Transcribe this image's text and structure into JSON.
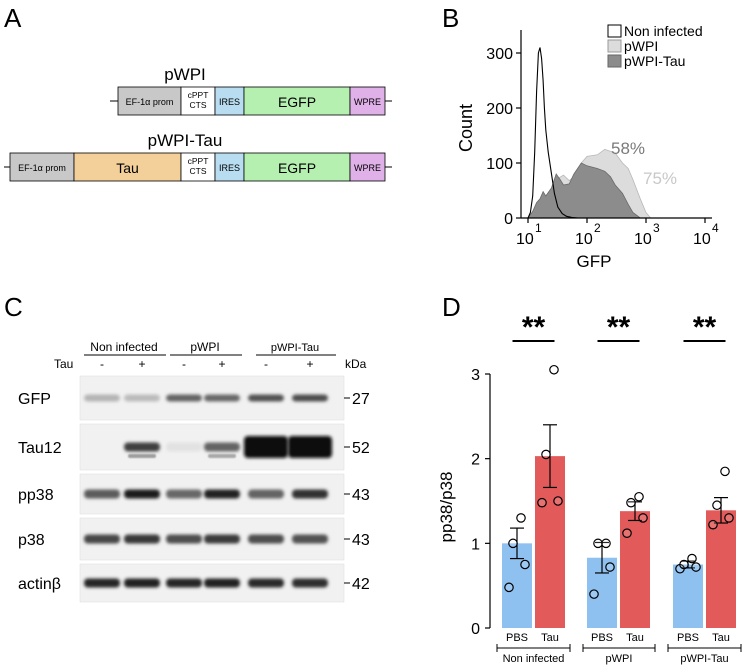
{
  "panels": {
    "A": "A",
    "B": "B",
    "C": "C",
    "D": "D"
  },
  "panel_a": {
    "constructs": [
      {
        "name": "pWPI",
        "elements": [
          {
            "label": "EF-1α prom",
            "color": "#c8c8c8"
          },
          {
            "label": "cPPT CTS",
            "color": "#ffffff"
          },
          {
            "label": "IRES",
            "color": "#b8dcf0"
          },
          {
            "label": "EGFP",
            "color": "#b5f0b0"
          },
          {
            "label": "WPRE",
            "color": "#e0b0e8"
          }
        ]
      },
      {
        "name": "pWPI-Tau",
        "elements": [
          {
            "label": "EF-1α prom",
            "color": "#c8c8c8"
          },
          {
            "label": "Tau",
            "color": "#f3cf9a"
          },
          {
            "label": "cPPT CTS",
            "color": "#ffffff"
          },
          {
            "label": "IRES",
            "color": "#b8dcf0"
          },
          {
            "label": "EGFP",
            "color": "#b5f0b0"
          },
          {
            "label": "WPRE",
            "color": "#e0b0e8"
          }
        ]
      }
    ],
    "cppt_line1": "cPPT",
    "cppt_line2": "CTS"
  },
  "chart_data": [
    {
      "type": "area",
      "panel": "B",
      "ylabel": "Count",
      "xlabel": "GFP",
      "x_scale": "log",
      "xlim": [
        10,
        10000
      ],
      "ylim": [
        0,
        320
      ],
      "x_tick_bases": [
        "10",
        "10",
        "10",
        "10"
      ],
      "x_tick_exponents": [
        "1",
        "2",
        "3",
        "4"
      ],
      "y_ticks": [
        "0",
        "100",
        "200",
        "300"
      ],
      "legend": {
        "placement": "top-right",
        "entries": [
          {
            "name": "Non infected",
            "color": "#ffffff"
          },
          {
            "name": "pWPI",
            "color": "#dcdcdc"
          },
          {
            "name": "pWPI-Tau",
            "color": "#8c8c8c"
          }
        ]
      },
      "series": [
        {
          "name": "Non infected",
          "color": "#ffffff",
          "x": [
            10,
            11,
            12,
            13,
            14,
            15,
            16,
            17,
            18,
            19,
            20,
            22,
            25,
            28,
            32,
            38,
            45,
            55,
            70
          ],
          "y": [
            0,
            10,
            40,
            120,
            230,
            300,
            310,
            290,
            250,
            200,
            160,
            120,
            80,
            45,
            20,
            8,
            3,
            1,
            0
          ]
        },
        {
          "name": "pWPI",
          "color": "#dcdcdc",
          "x": [
            10,
            12,
            14,
            16,
            18,
            20,
            25,
            30,
            40,
            50,
            60,
            80,
            100,
            150,
            200,
            300,
            400,
            500,
            600,
            800,
            1000,
            1200
          ],
          "y": [
            0,
            8,
            20,
            30,
            40,
            38,
            45,
            70,
            78,
            68,
            75,
            100,
            112,
            115,
            125,
            118,
            100,
            90,
            70,
            35,
            10,
            0
          ]
        },
        {
          "name": "pWPI-Tau",
          "color": "#8c8c8c",
          "x": [
            10,
            12,
            14,
            16,
            18,
            20,
            25,
            30,
            35,
            40,
            50,
            60,
            80,
            100,
            150,
            200,
            250,
            300,
            400,
            500,
            600,
            800
          ],
          "y": [
            0,
            12,
            28,
            35,
            48,
            40,
            55,
            80,
            70,
            60,
            62,
            80,
            100,
            95,
            90,
            85,
            75,
            60,
            45,
            25,
            10,
            0
          ]
        }
      ],
      "annotations": [
        {
          "text": "58%",
          "color": "#7a7a7a"
        },
        {
          "text": "75%",
          "color": "#c8c8c8"
        }
      ]
    },
    {
      "type": "bar",
      "panel": "D",
      "ylabel": "pp38/p38",
      "ylim": [
        0,
        3
      ],
      "y_ticks": [
        "0",
        "1",
        "2",
        "3"
      ],
      "bar_labels": [
        "PBS",
        "Tau",
        "PBS",
        "Tau",
        "PBS",
        "Tau"
      ],
      "groups": [
        "Non infected",
        "pWPI",
        "pWPI-Tau"
      ],
      "significance": [
        "**",
        "**",
        "**"
      ],
      "bars": [
        {
          "label": "PBS",
          "group": "Non infected",
          "value": 1.0,
          "sem": 0.18,
          "points": [
            0.48,
            0.75,
            1.0,
            1.3
          ],
          "color": "#8ec0f0"
        },
        {
          "label": "Tau",
          "group": "Non infected",
          "value": 2.03,
          "sem": 0.37,
          "points": [
            1.48,
            1.5,
            2.05,
            3.05
          ],
          "color": "#e25a5a"
        },
        {
          "label": "PBS",
          "group": "pWPI",
          "value": 0.83,
          "sem": 0.18,
          "points": [
            0.4,
            0.72,
            1.0,
            1.0
          ],
          "color": "#8ec0f0"
        },
        {
          "label": "Tau",
          "group": "pWPI",
          "value": 1.38,
          "sem": 0.11,
          "points": [
            1.12,
            1.3,
            1.48,
            1.55
          ],
          "color": "#e25a5a"
        },
        {
          "label": "PBS",
          "group": "pWPI-Tau",
          "value": 0.75,
          "sem": 0.04,
          "points": [
            0.7,
            0.72,
            0.75,
            0.82
          ],
          "color": "#8ec0f0"
        },
        {
          "label": "Tau",
          "group": "pWPI-Tau",
          "value": 1.39,
          "sem": 0.15,
          "points": [
            1.22,
            1.3,
            1.45,
            1.85
          ],
          "color": "#e25a5a"
        }
      ]
    }
  ],
  "panel_c": {
    "groups": [
      "Non infected",
      "pWPI",
      "pWPI-Tau"
    ],
    "tau_row_label": "Tau",
    "lane_signs": [
      "-",
      "+",
      "-",
      "+",
      "-",
      "+"
    ],
    "kda_label": "kDa",
    "blots": [
      {
        "name": "GFP",
        "kda": "27"
      },
      {
        "name": "Tau12",
        "kda": "52"
      },
      {
        "name": "pp38",
        "kda": "43"
      },
      {
        "name": "p38",
        "kda": "43"
      },
      {
        "name": "actinβ",
        "kda": "42"
      }
    ]
  }
}
